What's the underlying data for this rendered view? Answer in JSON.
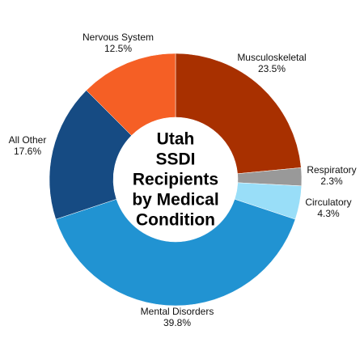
{
  "chart_data": {
    "type": "pie",
    "subtype": "donut",
    "title": [
      "Utah",
      "SSDI Recipients",
      "by Medical",
      "Condition"
    ],
    "slices": [
      {
        "name": "Musculoskeletal",
        "value": 23.5,
        "label": "23.5%",
        "color": "#a83000"
      },
      {
        "name": "Respiratory",
        "value": 2.3,
        "label": "2.3%",
        "color": "#999999"
      },
      {
        "name": "Circulatory",
        "value": 4.3,
        "label": "4.3%",
        "color": "#99def8"
      },
      {
        "name": "Mental Disorders",
        "value": 39.8,
        "label": "39.8%",
        "color": "#2193d2"
      },
      {
        "name": "All Other",
        "value": 17.6,
        "label": "17.6%",
        "color": "#164b83"
      },
      {
        "name": "Nervous System",
        "value": 12.5,
        "label": "12.5%",
        "color": "#f55f25"
      }
    ],
    "start_angle_deg": 0,
    "direction": "clockwise",
    "legend": "none"
  }
}
